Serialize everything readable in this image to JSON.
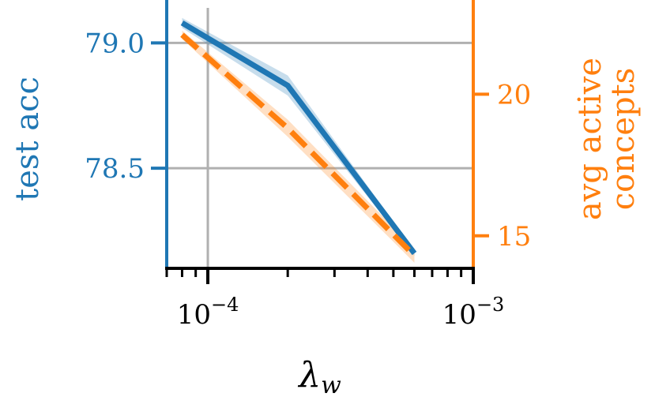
{
  "chart_data": {
    "type": "line",
    "x_scale": "log",
    "xlabel": "λ",
    "xlabel_subscript": "w",
    "x_ticks": [
      {
        "value": 0.0001,
        "base": "10",
        "exp": "−4"
      },
      {
        "value": 0.001,
        "base": "10",
        "exp": "−3"
      }
    ],
    "xlim": [
      7e-05,
      0.001
    ],
    "left_axis": {
      "label": "test acc",
      "color": "#1f77b4",
      "ticks": [
        78.5,
        79.0
      ],
      "tick_labels": [
        "78.5",
        "79.0"
      ],
      "ylim": [
        78.1,
        79.14
      ]
    },
    "right_axis": {
      "label_lines": [
        "avg active",
        "concepts"
      ],
      "color": "#ff7f0e",
      "ticks": [
        15,
        20
      ],
      "tick_labels": [
        "15",
        "20"
      ],
      "ylim": [
        13.85,
        23.05
      ]
    },
    "grid": true,
    "series": [
      {
        "axis": "left",
        "style": "solid",
        "color": "#1f77b4",
        "x": [
          8e-05,
          0.0002,
          0.0006
        ],
        "y": [
          79.08,
          78.83,
          78.16
        ],
        "band_lower": [
          79.06,
          78.79,
          78.15
        ],
        "band_upper": [
          79.1,
          78.87,
          78.17
        ]
      },
      {
        "axis": "right",
        "style": "dashed",
        "color": "#ff7f0e",
        "x": [
          8e-05,
          0.0002,
          0.0006
        ],
        "y": [
          22.1,
          18.8,
          14.3
        ],
        "band_lower": [
          21.95,
          18.5,
          14.05
        ],
        "band_upper": [
          22.25,
          19.1,
          14.55
        ]
      }
    ]
  }
}
